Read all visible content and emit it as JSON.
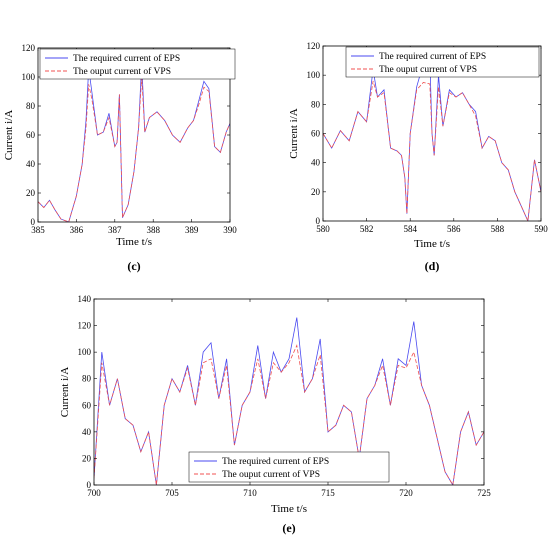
{
  "colors": {
    "required": "#4a4af0",
    "output": "#f05050",
    "axis": "#000000",
    "legend_bg": "#ffffff"
  },
  "chart_data": [
    {
      "type": "line",
      "panel_label": "(c)",
      "xlabel": "Time t/s",
      "ylabel": "Current i/A",
      "xlim": [
        385,
        390
      ],
      "ylim": [
        0,
        120
      ],
      "xticks": [
        385,
        386,
        387,
        388,
        389,
        390
      ],
      "yticks": [
        0,
        20,
        40,
        60,
        80,
        100,
        120
      ],
      "legend_position": "top-left",
      "grid": false,
      "series": [
        {
          "name": "The required current of EPS",
          "x": [
            385,
            385.15,
            385.3,
            385.45,
            385.6,
            385.8,
            386.0,
            386.15,
            386.25,
            386.32,
            386.4,
            386.55,
            386.7,
            386.85,
            387.0,
            387.06,
            387.12,
            387.2,
            387.35,
            387.5,
            387.62,
            387.7,
            387.78,
            387.9,
            388.1,
            388.3,
            388.5,
            388.7,
            388.9,
            389.05,
            389.2,
            389.32,
            389.45,
            389.6,
            389.75,
            389.9,
            390
          ],
          "y": [
            14,
            10,
            15,
            8,
            2,
            0,
            18,
            40,
            70,
            106,
            90,
            60,
            62,
            75,
            52,
            55,
            88,
            3,
            12,
            35,
            65,
            110,
            62,
            72,
            76,
            70,
            60,
            55,
            65,
            70,
            85,
            97,
            92,
            52,
            48,
            62,
            68
          ]
        },
        {
          "name": "The ouput current of VPS",
          "x": [
            385,
            385.15,
            385.3,
            385.45,
            385.6,
            385.8,
            386.0,
            386.15,
            386.25,
            386.32,
            386.4,
            386.55,
            386.7,
            386.85,
            387.0,
            387.06,
            387.12,
            387.2,
            387.35,
            387.5,
            387.62,
            387.7,
            387.78,
            387.9,
            388.1,
            388.3,
            388.5,
            388.7,
            388.9,
            389.05,
            389.2,
            389.32,
            389.45,
            389.6,
            389.75,
            389.9,
            390
          ],
          "y": [
            14,
            10,
            15,
            8,
            2,
            0,
            18,
            40,
            65,
            95,
            85,
            60,
            62,
            72,
            52,
            55,
            88,
            3,
            12,
            35,
            65,
            100,
            62,
            72,
            76,
            70,
            60,
            55,
            65,
            70,
            82,
            93,
            90,
            52,
            48,
            62,
            68
          ]
        }
      ]
    },
    {
      "type": "line",
      "panel_label": "(d)",
      "xlabel": "Time t/s",
      "ylabel": "Current i/A",
      "xlim": [
        580,
        590
      ],
      "ylim": [
        0,
        120
      ],
      "xticks": [
        580,
        582,
        584,
        586,
        588,
        590
      ],
      "yticks": [
        0,
        20,
        40,
        60,
        80,
        100,
        120
      ],
      "legend_position": "top-right",
      "grid": false,
      "series": [
        {
          "name": "The required current of EPS",
          "x": [
            580,
            580.4,
            580.8,
            581.2,
            581.6,
            582.0,
            582.3,
            582.5,
            582.8,
            583.1,
            583.4,
            583.6,
            583.75,
            583.85,
            584.0,
            584.3,
            584.6,
            584.9,
            585.0,
            585.1,
            585.3,
            585.5,
            585.8,
            586.1,
            586.4,
            586.7,
            587.0,
            587.3,
            587.6,
            587.9,
            588.2,
            588.5,
            588.8,
            589.1,
            589.4,
            589.7,
            590
          ],
          "y": [
            60,
            50,
            62,
            55,
            75,
            68,
            104,
            85,
            90,
            50,
            48,
            45,
            30,
            5,
            60,
            92,
            108,
            112,
            60,
            45,
            100,
            65,
            90,
            85,
            88,
            80,
            75,
            50,
            58,
            55,
            40,
            35,
            20,
            10,
            0,
            42,
            20
          ]
        },
        {
          "name": "The ouput current of VPS",
          "x": [
            580,
            580.4,
            580.8,
            581.2,
            581.6,
            582.0,
            582.3,
            582.5,
            582.8,
            583.1,
            583.4,
            583.6,
            583.75,
            583.85,
            584.0,
            584.3,
            584.6,
            584.9,
            585.0,
            585.1,
            585.3,
            585.5,
            585.8,
            586.1,
            586.4,
            586.7,
            587.0,
            587.3,
            587.6,
            587.9,
            588.2,
            588.5,
            588.8,
            589.1,
            589.4,
            589.7,
            590
          ],
          "y": [
            60,
            50,
            62,
            55,
            75,
            68,
            96,
            85,
            88,
            50,
            48,
            45,
            30,
            5,
            60,
            90,
            95,
            94,
            60,
            45,
            92,
            65,
            88,
            85,
            88,
            80,
            72,
            50,
            58,
            55,
            40,
            35,
            20,
            10,
            0,
            42,
            20
          ]
        }
      ]
    },
    {
      "type": "line",
      "panel_label": "(e)",
      "xlabel": "Time t/s",
      "ylabel": "Current i/A",
      "xlim": [
        700,
        725
      ],
      "ylim": [
        0,
        140
      ],
      "xticks": [
        700,
        705,
        710,
        715,
        720,
        725
      ],
      "yticks": [
        0,
        20,
        40,
        60,
        80,
        100,
        120,
        140
      ],
      "legend_position": "bottom-center",
      "grid": false,
      "series": [
        {
          "name": "The required current of EPS",
          "x": [
            700,
            700.5,
            701,
            701.5,
            702,
            702.5,
            703,
            703.5,
            704,
            704.5,
            705,
            705.5,
            706,
            706.5,
            707,
            707.5,
            708,
            708.5,
            709,
            709.5,
            710,
            710.5,
            711,
            711.5,
            712,
            712.5,
            713,
            713.5,
            714,
            714.5,
            715,
            715.5,
            716,
            716.5,
            717,
            717.5,
            718,
            718.5,
            719,
            719.5,
            720,
            720.5,
            721,
            721.5,
            722,
            722.5,
            723,
            723.5,
            724,
            724.5,
            725
          ],
          "y": [
            5,
            100,
            60,
            80,
            50,
            45,
            25,
            40,
            0,
            60,
            80,
            70,
            90,
            60,
            100,
            107,
            65,
            95,
            30,
            60,
            70,
            105,
            65,
            100,
            85,
            95,
            126,
            70,
            80,
            110,
            40,
            45,
            60,
            55,
            20,
            65,
            75,
            95,
            60,
            95,
            90,
            123,
            75,
            60,
            35,
            10,
            0,
            40,
            55,
            30,
            40
          ]
        },
        {
          "name": "The ouput current of VPS",
          "x": [
            700,
            700.5,
            701,
            701.5,
            702,
            702.5,
            703,
            703.5,
            704,
            704.5,
            705,
            705.5,
            706,
            706.5,
            707,
            707.5,
            708,
            708.5,
            709,
            709.5,
            710,
            710.5,
            711,
            711.5,
            712,
            712.5,
            713,
            713.5,
            714,
            714.5,
            715,
            715.5,
            716,
            716.5,
            717,
            717.5,
            718,
            718.5,
            719,
            719.5,
            720,
            720.5,
            721,
            721.5,
            722,
            722.5,
            723,
            723.5,
            724,
            724.5,
            725
          ],
          "y": [
            5,
            92,
            60,
            80,
            50,
            45,
            25,
            40,
            0,
            60,
            80,
            70,
            88,
            60,
            92,
            95,
            65,
            90,
            30,
            60,
            70,
            95,
            65,
            92,
            85,
            92,
            105,
            70,
            80,
            98,
            40,
            45,
            60,
            55,
            20,
            65,
            75,
            90,
            60,
            90,
            88,
            100,
            75,
            60,
            35,
            10,
            0,
            40,
            55,
            30,
            40
          ]
        }
      ]
    }
  ]
}
